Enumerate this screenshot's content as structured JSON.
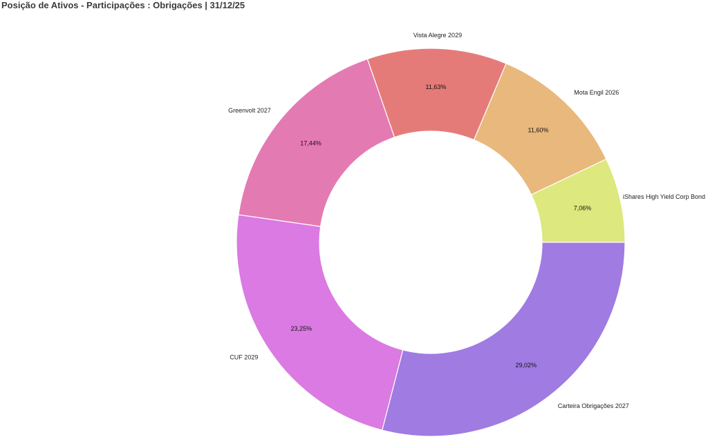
{
  "header": {
    "title": "Posição de Ativos - Participações : Obrigações | 31/12/25"
  },
  "chart_data": {
    "type": "pie",
    "variant": "donut",
    "title": "Posição de Ativos - Participações : Obrigações | 31/12/25",
    "legend": "none",
    "direction": "counterclockwise",
    "slices": [
      {
        "label": "iShares High Yield Corp Bond",
        "value": 7.06,
        "value_label": "7,06%",
        "color": "#dde87e"
      },
      {
        "label": "Mota Engil 2026",
        "value": 11.6,
        "value_label": "11,60%",
        "color": "#e8b87c"
      },
      {
        "label": "Vista Alegre 2029",
        "value": 11.63,
        "value_label": "11,63%",
        "color": "#e57b79"
      },
      {
        "label": "Greenvolt 2027",
        "value": 17.44,
        "value_label": "17,44%",
        "color": "#e47ab2"
      },
      {
        "label": "CUF 2029",
        "value": 23.25,
        "value_label": "23,25%",
        "color": "#da7ae2"
      },
      {
        "label": "Carteira Obrigações 2027",
        "value": 29.02,
        "value_label": "29,02%",
        "color": "#a07be2"
      }
    ]
  }
}
